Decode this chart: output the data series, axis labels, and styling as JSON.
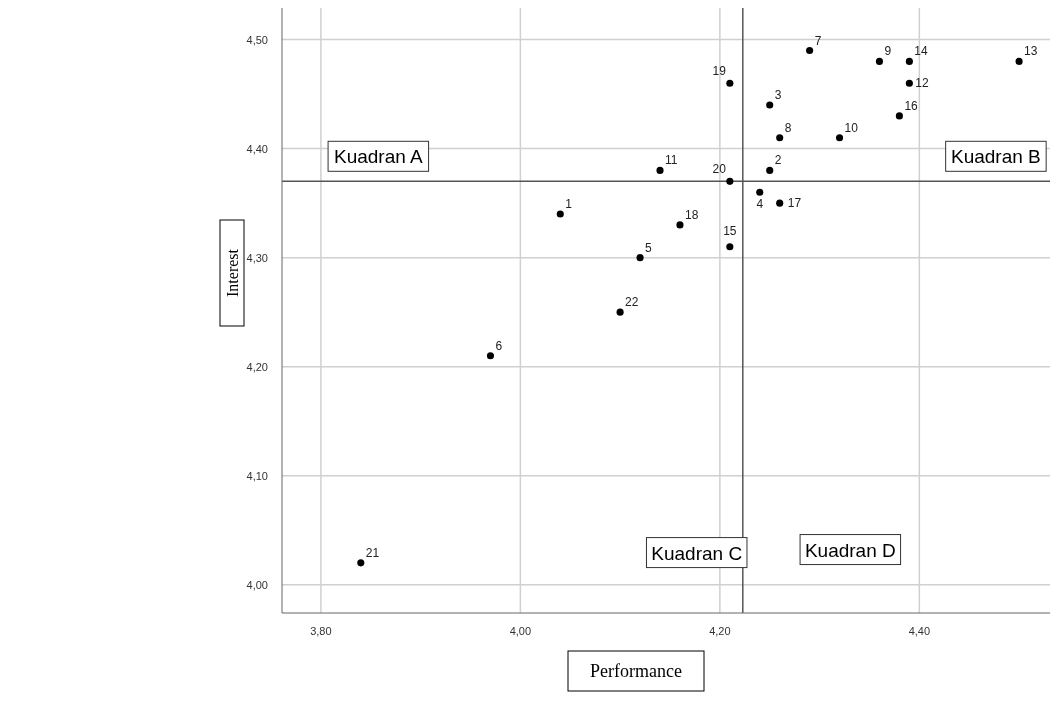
{
  "chart_data": {
    "type": "scatter",
    "xlabel": "Performance",
    "ylabel": "Interest",
    "x": [
      4.04,
      4.25,
      4.25,
      4.24,
      4.12,
      3.97,
      4.29,
      4.26,
      4.36,
      4.32,
      4.14,
      4.39,
      4.5,
      4.39,
      4.21,
      4.38,
      4.26,
      4.16,
      4.21,
      4.21,
      3.84,
      4.1
    ],
    "values": [
      4.34,
      4.38,
      4.44,
      4.36,
      4.3,
      4.21,
      4.49,
      4.41,
      4.48,
      4.41,
      4.38,
      4.46,
      4.48,
      4.48,
      4.31,
      4.43,
      4.35,
      4.33,
      4.46,
      4.37,
      4.02,
      4.25
    ],
    "color": "#000000",
    "marker": "circle",
    "grid": true,
    "xlim": [
      3.761,
      4.531
    ],
    "ylim": [
      3.974,
      4.529
    ],
    "xticks": [
      {
        "value": 3.8,
        "label": "3,80"
      },
      {
        "value": 4.0,
        "label": "4,00"
      },
      {
        "value": 4.2,
        "label": "4,20"
      },
      {
        "value": 4.4,
        "label": "4,40"
      }
    ],
    "yticks": [
      {
        "value": 4.0,
        "label": "4,00"
      },
      {
        "value": 4.1,
        "label": "4,10"
      },
      {
        "value": 4.2,
        "label": "4,20"
      },
      {
        "value": 4.3,
        "label": "4,30"
      },
      {
        "value": 4.4,
        "label": "4,40"
      },
      {
        "value": 4.5,
        "label": "4,50"
      }
    ],
    "ref_lines": [
      {
        "axis": "x",
        "value": 4.223,
        "color": "#555555"
      },
      {
        "axis": "y",
        "value": 4.37,
        "color": "#555555"
      }
    ],
    "annotations": [
      {
        "text": "1",
        "x": 4.04,
        "y": 4.34
      },
      {
        "text": "2",
        "x": 4.25,
        "y": 4.38
      },
      {
        "text": "3",
        "x": 4.25,
        "y": 4.44
      },
      {
        "text": "4",
        "x": 4.24,
        "y": 4.36
      },
      {
        "text": "5",
        "x": 4.12,
        "y": 4.3
      },
      {
        "text": "6",
        "x": 3.97,
        "y": 4.21
      },
      {
        "text": "7",
        "x": 4.29,
        "y": 4.49
      },
      {
        "text": "8",
        "x": 4.26,
        "y": 4.41
      },
      {
        "text": "9",
        "x": 4.36,
        "y": 4.48
      },
      {
        "text": "10",
        "x": 4.32,
        "y": 4.41
      },
      {
        "text": "11",
        "x": 4.14,
        "y": 4.38
      },
      {
        "text": "12",
        "x": 4.39,
        "y": 4.46
      },
      {
        "text": "13",
        "x": 4.5,
        "y": 4.48
      },
      {
        "text": "14",
        "x": 4.39,
        "y": 4.48
      },
      {
        "text": "15",
        "x": 4.21,
        "y": 4.31
      },
      {
        "text": "16",
        "x": 4.38,
        "y": 4.43
      },
      {
        "text": "17",
        "x": 4.26,
        "y": 4.35
      },
      {
        "text": "18",
        "x": 4.16,
        "y": 4.33
      },
      {
        "text": "19",
        "x": 4.21,
        "y": 4.46
      },
      {
        "text": "20",
        "x": 4.21,
        "y": 4.37
      },
      {
        "text": "21",
        "x": 3.84,
        "y": 4.02
      },
      {
        "text": "22",
        "x": 4.1,
        "y": 4.25
      },
      "Kuadran A",
      "Kuadran B",
      "Kuadran C",
      "Kuadran D"
    ]
  }
}
